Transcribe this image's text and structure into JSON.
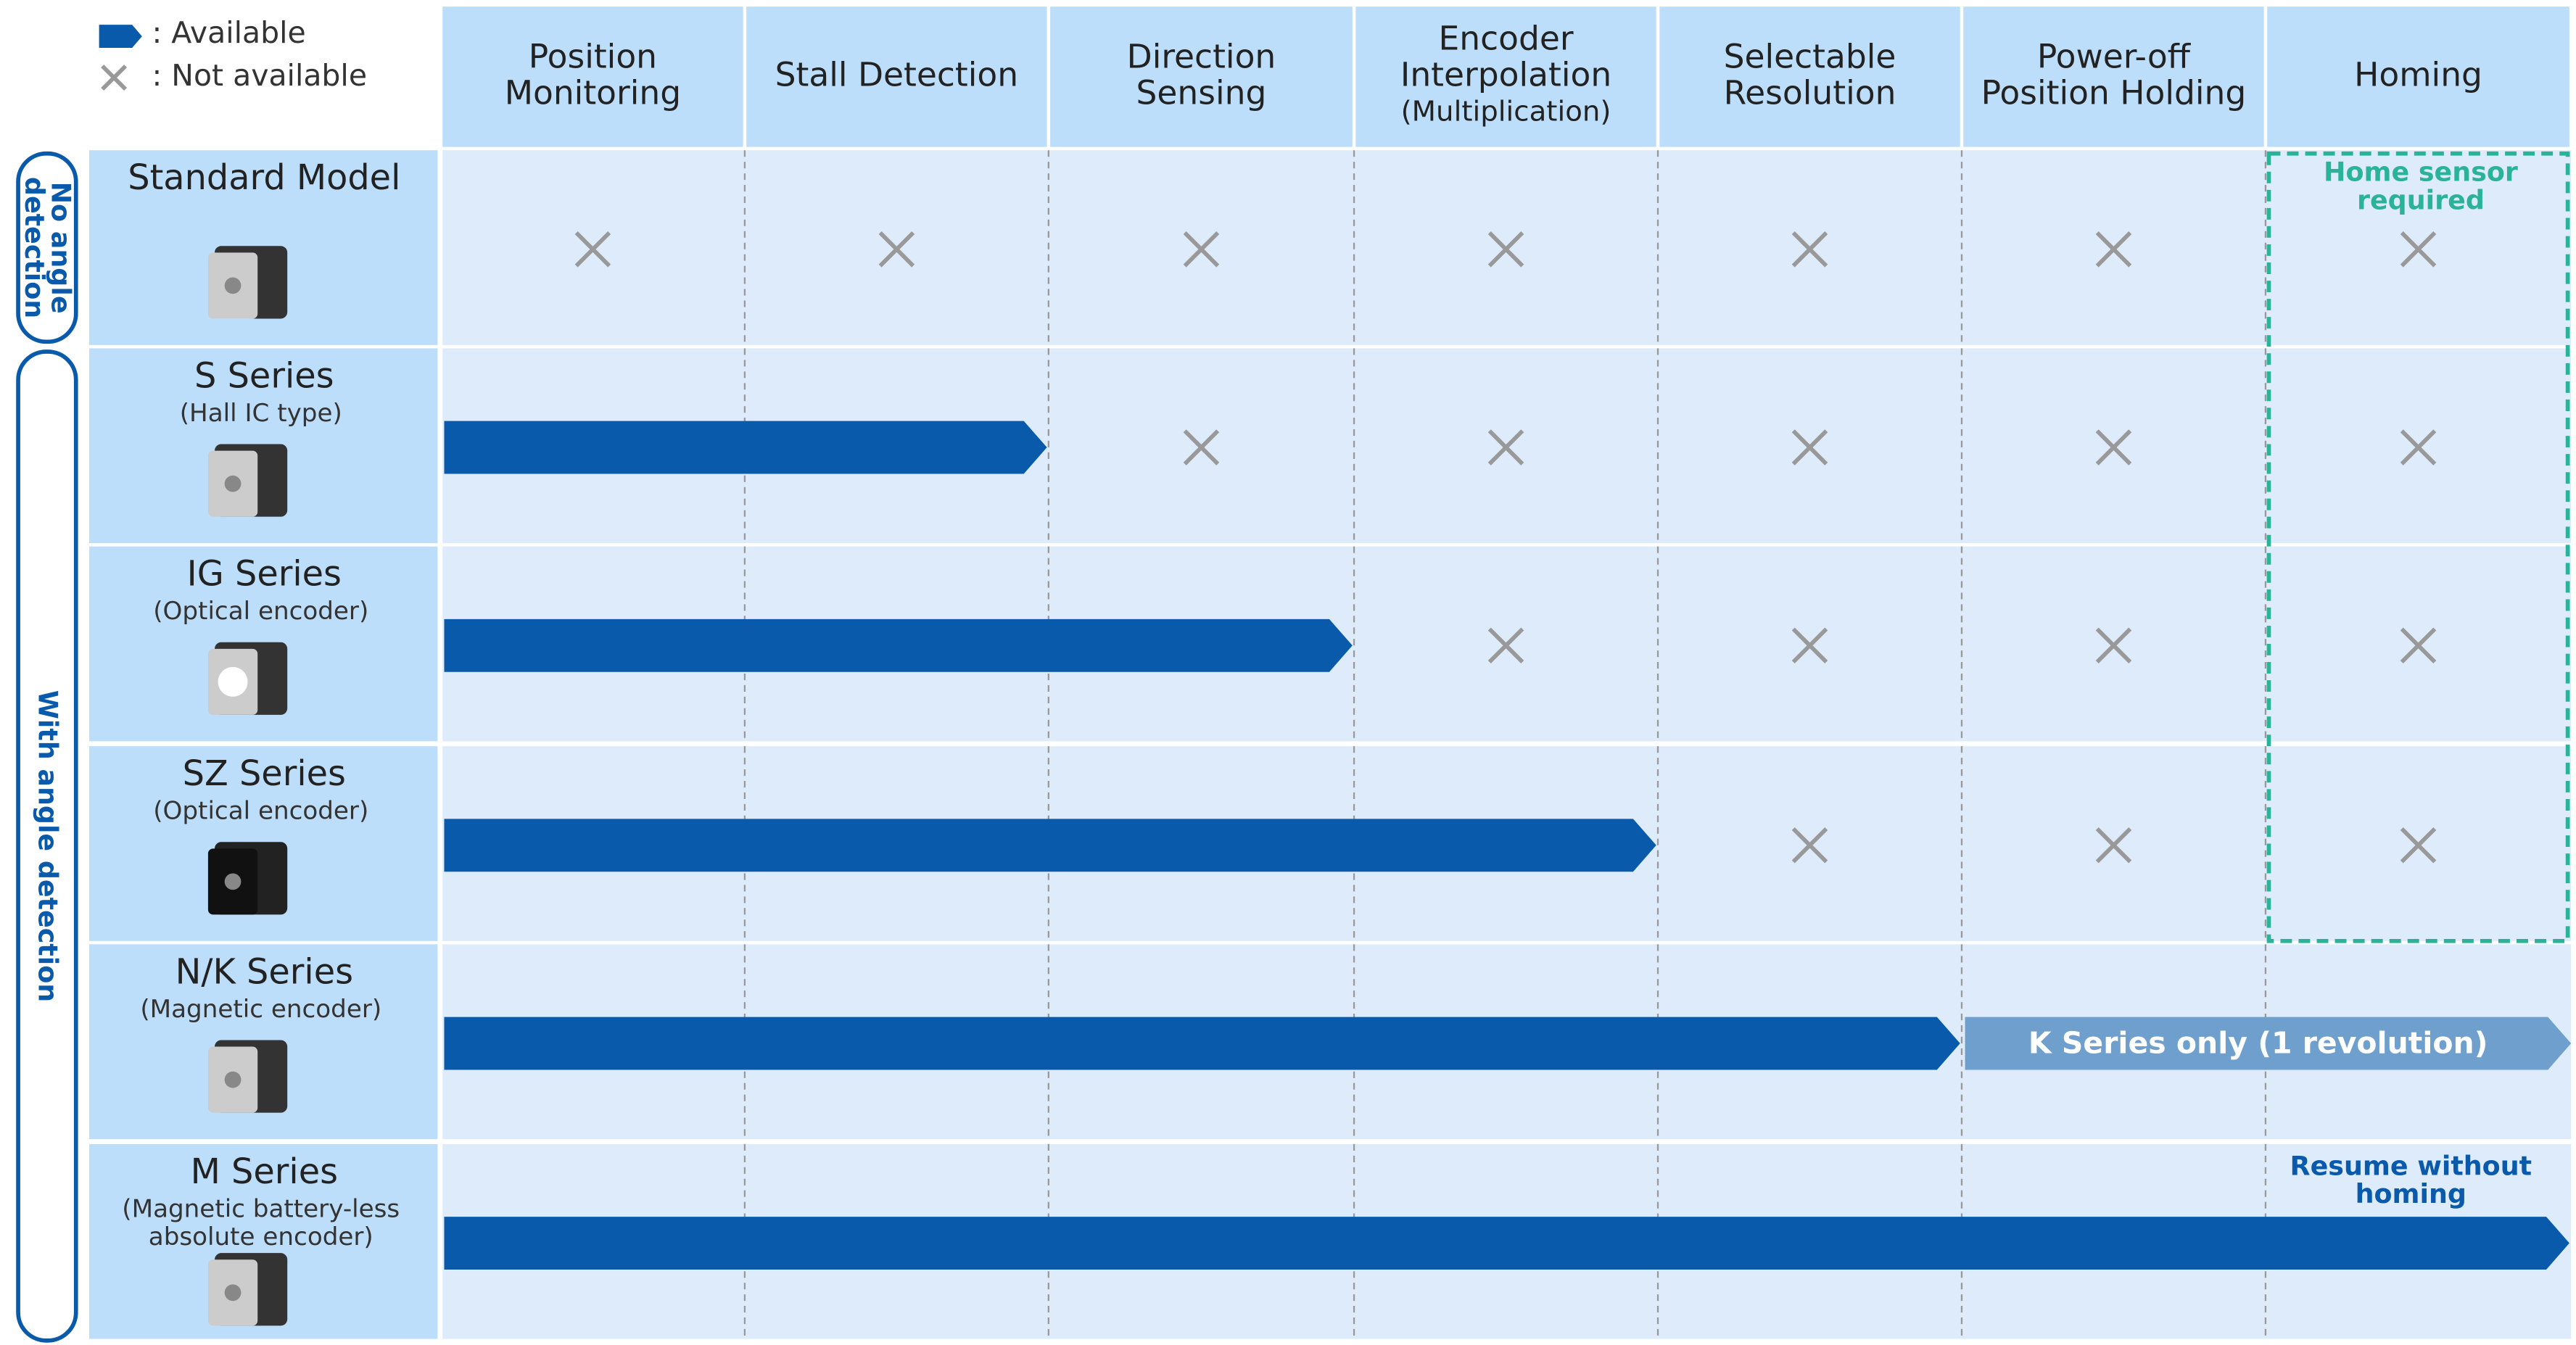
{
  "legend": {
    "available": ": Available",
    "not_available": ": Not available"
  },
  "columns": [
    {
      "lines": [
        "Position",
        "Monitoring"
      ]
    },
    {
      "lines": [
        "Stall Detection"
      ]
    },
    {
      "lines": [
        "Direction",
        "Sensing"
      ]
    },
    {
      "lines": [
        "Encoder",
        "Interpolation"
      ],
      "sub": "(Multiplication)"
    },
    {
      "lines": [
        "Selectable",
        "Resolution"
      ]
    },
    {
      "lines": [
        "Power-off",
        "Position Holding"
      ]
    },
    {
      "lines": [
        "Homing"
      ]
    }
  ],
  "groups": [
    {
      "lines": [
        "No angle",
        "detection"
      ]
    },
    {
      "lines": [
        "With angle detection"
      ]
    }
  ],
  "rows": [
    {
      "name": "Standard Model",
      "sub": [],
      "available": 0
    },
    {
      "name": "S Series",
      "sub": [
        "(Hall IC type)"
      ],
      "available": 2
    },
    {
      "name": "IG Series",
      "sub": [
        "(Optical encoder)"
      ],
      "available": 3
    },
    {
      "name": "SZ Series",
      "sub": [
        "(Optical encoder)"
      ],
      "available": 4
    },
    {
      "name": "N/K Series",
      "sub": [
        "(Magnetic encoder)"
      ],
      "available": 5,
      "note": "K Series only (1 revolution)"
    },
    {
      "name": "M Series",
      "sub": [
        "(Magnetic battery-less",
        "absolute encoder)"
      ],
      "available": 7,
      "note_lines": [
        "Resume without",
        "homing"
      ]
    }
  ],
  "home_sensor_note": [
    "Home sensor",
    "required"
  ]
}
